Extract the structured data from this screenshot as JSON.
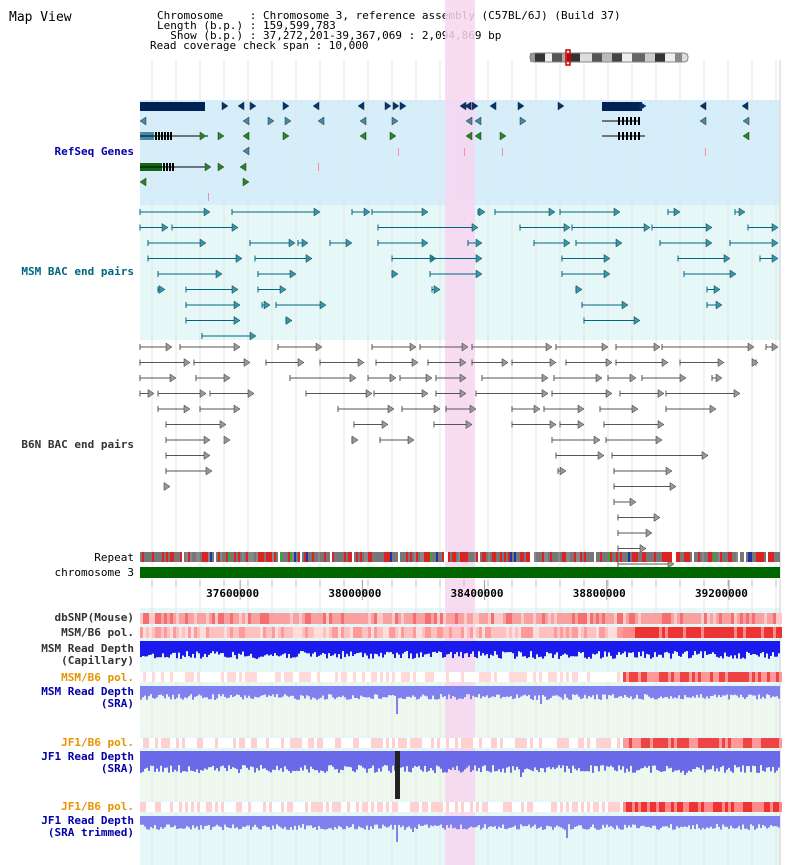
{
  "header": {
    "title": "Map View",
    "lines": [
      "Chromosome    : Chromosome 3, reference assembly (C57BL/6J) (Build 37)",
      "Length (b.p.) : 159,599,783",
      "  Show (b.p.) : 37,272,201-39,367,069 : 2,094,869 bp",
      "Read coverage check span : 10,000"
    ]
  },
  "view": {
    "start": 37272201,
    "end": 39367069,
    "highlight_start": 38272000,
    "highlight_end": 38372000
  },
  "axis": {
    "ticks": [
      37600000,
      38000000,
      38400000,
      38800000,
      39200000
    ]
  },
  "tracks": {
    "refseq": {
      "label": "RefSeq Genes",
      "color": "#0000aa"
    },
    "msm_bac": {
      "label": "MSM BAC end pairs",
      "color": "#006680"
    },
    "b6n_bac": {
      "label": "B6N BAC end pairs",
      "color": "#333333"
    },
    "repeat": {
      "label": "Repeat"
    },
    "chromosome": {
      "label": "chromosome 3"
    },
    "dbsnp": {
      "label": "dbSNP(Mouse)"
    },
    "msm_b6_pol_1": {
      "label": "MSM/B6 pol."
    },
    "msm_depth_cap": {
      "label": "MSM Read Depth",
      "sub": "(Capillary)"
    },
    "msm_b6_pol_2": {
      "label": "MSM/B6 pol.",
      "color": "#e69500"
    },
    "msm_depth_sra": {
      "label": "MSM Read Depth",
      "sub": "(SRA)",
      "color": "#0000aa"
    },
    "jf1_b6_pol_1": {
      "label": "JF1/B6 pol.",
      "color": "#e69500"
    },
    "jf1_depth_sra": {
      "label": "JF1 Read Depth",
      "sub": "(SRA)",
      "color": "#0000aa"
    },
    "jf1_b6_pol_2": {
      "label": "JF1/B6 pol.",
      "color": "#e69500"
    },
    "jf1_depth_trim": {
      "label": "JF1 Read Depth",
      "sub": "(SRA trimmed)",
      "color": "#0000aa"
    }
  },
  "colors": {
    "refseq_bg": "#d6eefa",
    "bac_bg": "#e6f7f7",
    "pol_bg": "#ffffff",
    "depth_bg": "#eef8ee",
    "highlight": "#f7d6f0",
    "chromosome": "#006600"
  }
}
